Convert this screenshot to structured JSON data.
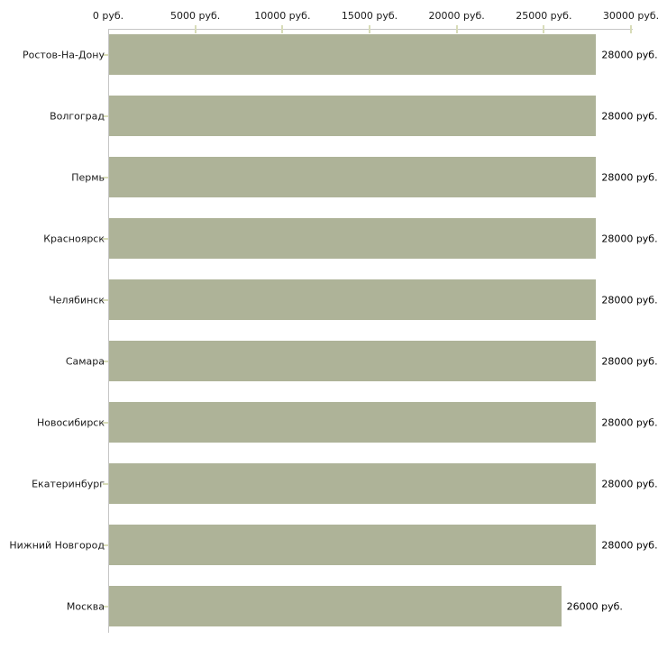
{
  "chart_data": {
    "type": "bar",
    "orientation": "horizontal",
    "title": "",
    "categories": [
      "Ростов-На-Дону",
      "Волгоград",
      "Пермь",
      "Красноярск",
      "Челябинск",
      "Самара",
      "Новосибирск",
      "Екатеринбург",
      "Нижний Новгород",
      "Москва"
    ],
    "values": [
      28000,
      28000,
      28000,
      28000,
      28000,
      28000,
      28000,
      28000,
      28000,
      26000
    ],
    "value_labels": [
      "28000 руб.",
      "28000 руб.",
      "28000 руб.",
      "28000 руб.",
      "28000 руб.",
      "28000 руб.",
      "28000 руб.",
      "28000 руб.",
      "28000 руб.",
      "26000 руб."
    ],
    "unit": "руб.",
    "x_ticks": [
      0,
      5000,
      10000,
      15000,
      20000,
      25000,
      30000
    ],
    "x_tick_labels": [
      "0 руб.",
      "5000 руб.",
      "10000 руб.",
      "15000 руб.",
      "20000 руб.",
      "25000 руб.",
      "30000 руб."
    ],
    "xlim": [
      0,
      30000
    ],
    "grid": false,
    "legend": false,
    "axis_position": "top",
    "colors": {
      "bar": "#aeb398",
      "axis": "#c6c6c6",
      "tick": "#d8dcb8",
      "text": "#1a1a1a",
      "background": "#ffffff"
    }
  }
}
